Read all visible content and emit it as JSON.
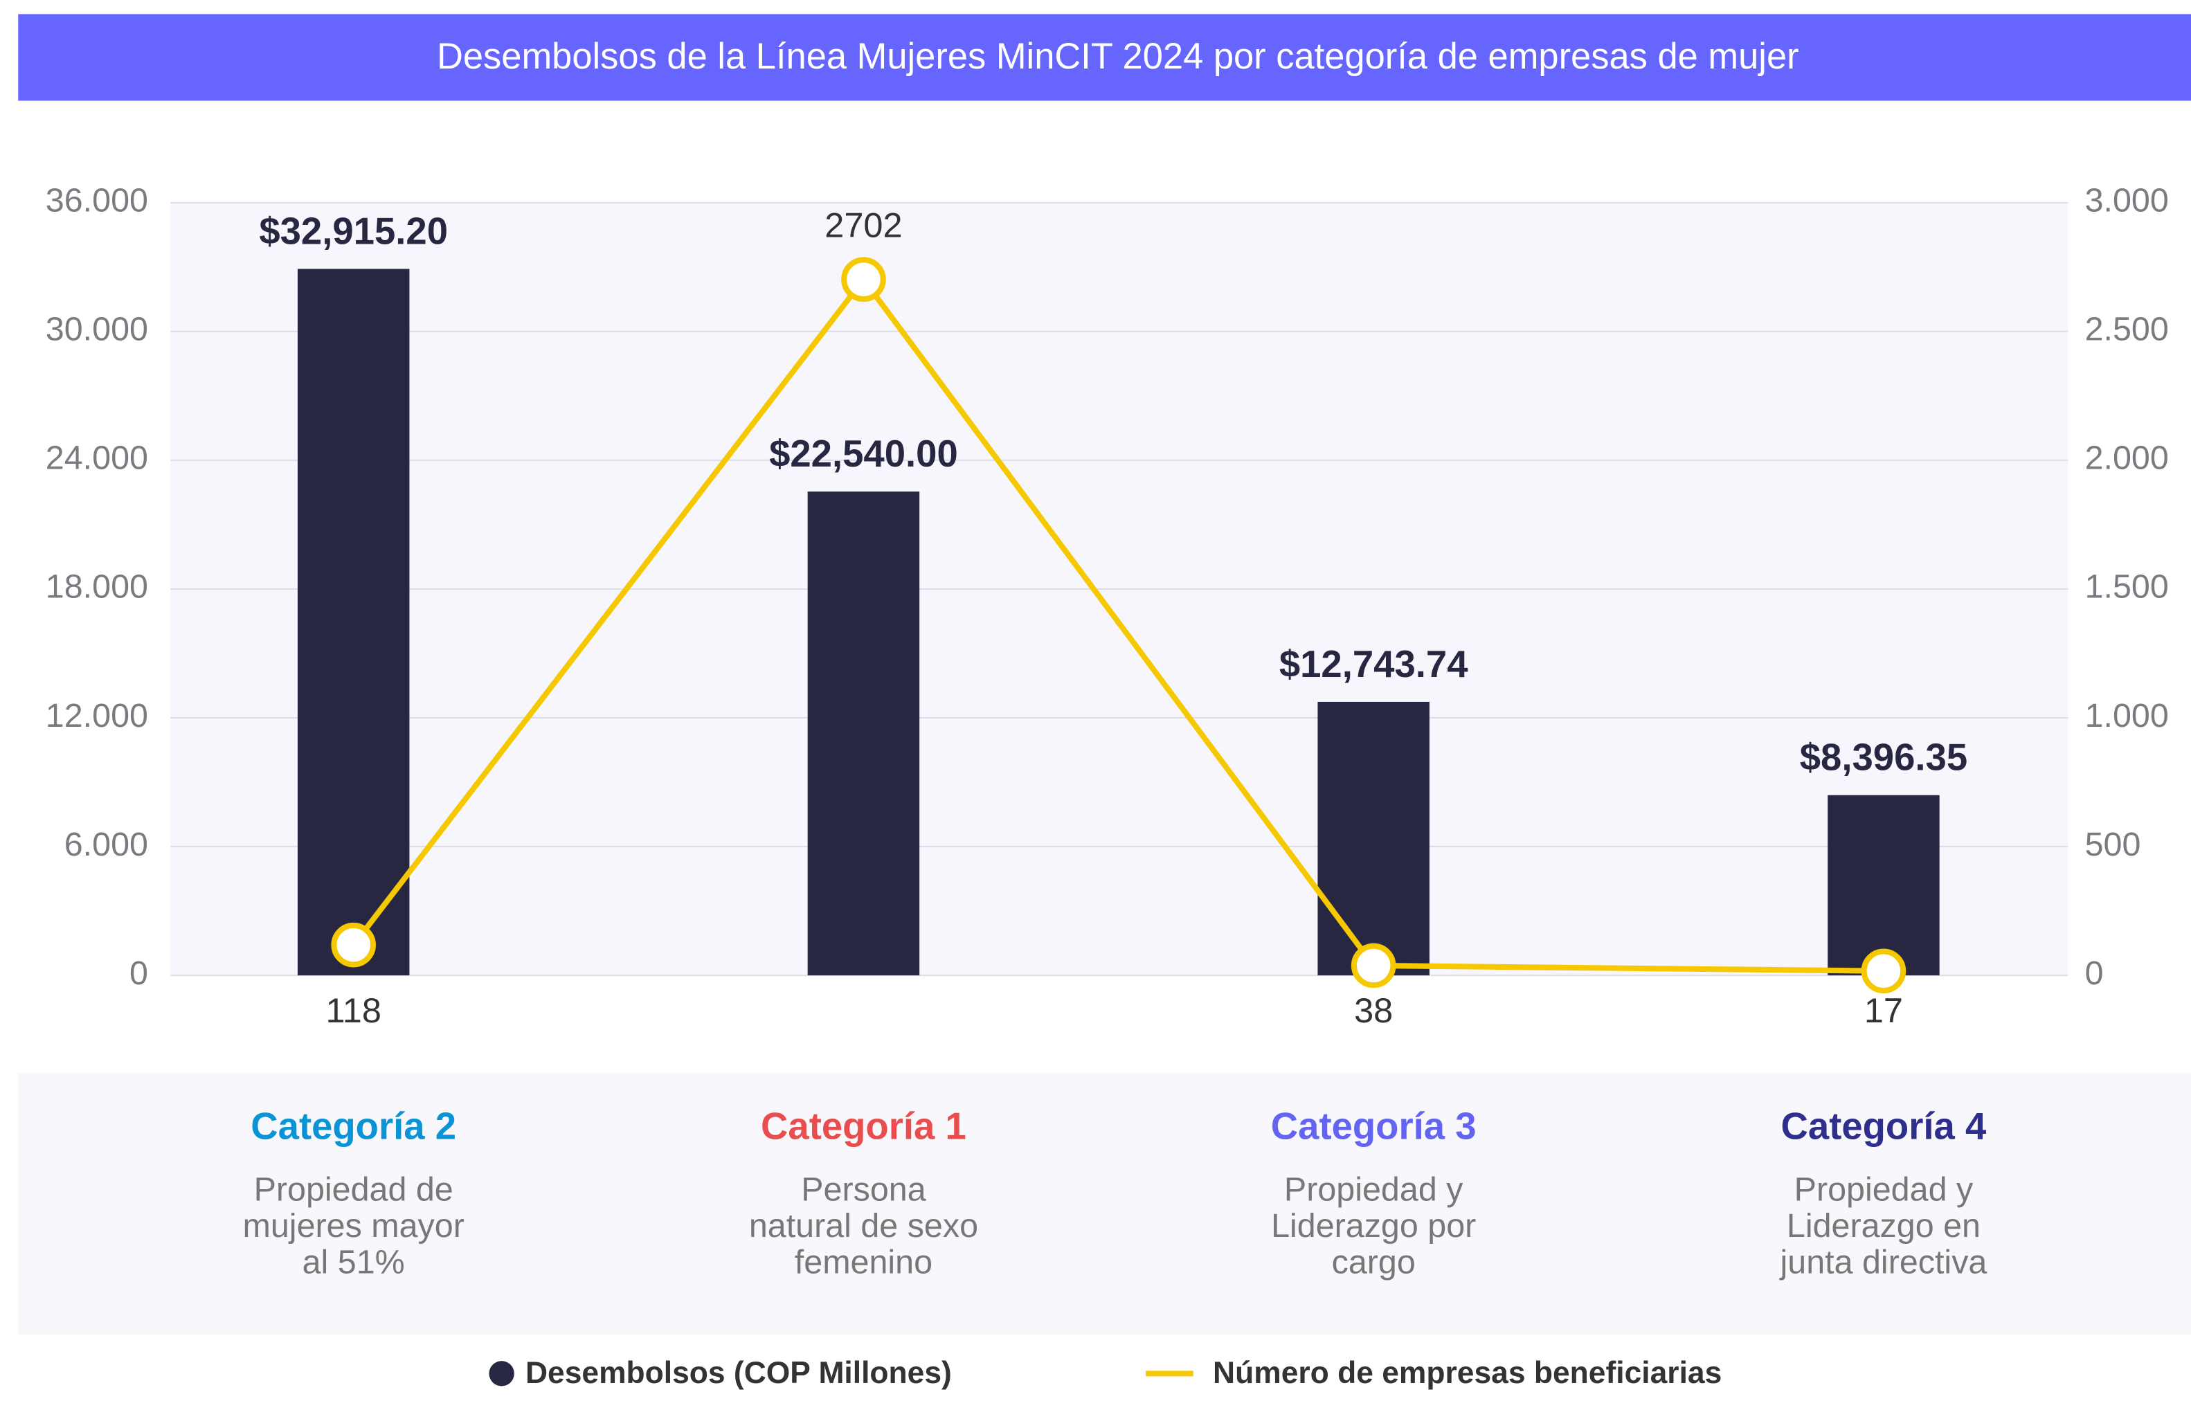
{
  "chart_data": {
    "type": "bar",
    "title": "Desembolsos de la Línea Mujeres MinCIT 2024 por categoría de empresas de mujer",
    "categories": [
      "Categoría 2",
      "Categoría 1",
      "Categoría 3",
      "Categoría 4"
    ],
    "category_colors": [
      "#0a94d6",
      "#ea4d4d",
      "#6464f2",
      "#2e2e8c"
    ],
    "descriptions": [
      [
        "Propiedad de",
        "mujeres mayor",
        "al 51%"
      ],
      [
        "Persona",
        "natural de sexo",
        "femenino"
      ],
      [
        "Propiedad y",
        "Liderazgo por",
        "cargo"
      ],
      [
        "Propiedad y",
        "Liderazgo en",
        "junta directiva"
      ]
    ],
    "series": [
      {
        "name": "Desembolsos (COP Millones)",
        "type": "bar",
        "color": "#272742",
        "values": [
          32915.2,
          22540.0,
          12743.74,
          8396.35
        ],
        "value_labels": [
          "$32,915.20",
          "$22,540.00",
          "$12,743.74",
          "$8,396.35"
        ]
      },
      {
        "name": "Número de empresas beneficiarias",
        "type": "line",
        "color": "#f5c800",
        "axis": "y2",
        "values": [
          118,
          2702,
          38,
          17
        ]
      }
    ],
    "ylim": [
      0,
      36000
    ],
    "yticks": [
      0,
      {
        "value": 6000,
        "label": "6.000"
      },
      {
        "value": 12000,
        "label": "12.000"
      },
      {
        "value": 18000,
        "label": "18.000"
      },
      {
        "value": 24000,
        "label": "24.000"
      },
      {
        "value": 30000,
        "label": "30.000"
      },
      {
        "value": 36000,
        "label": "36.000"
      }
    ],
    "y2lim": [
      0,
      3000
    ],
    "y2ticks": [
      0,
      500,
      {
        "value": 1000,
        "label": "1.000"
      },
      {
        "value": 1500,
        "label": "1.500"
      },
      {
        "value": 2000,
        "label": "2.000"
      },
      {
        "value": 2500,
        "label": "2.500"
      },
      {
        "value": 3000,
        "label": "3.000"
      }
    ],
    "grid": true,
    "legend": "bottom"
  }
}
